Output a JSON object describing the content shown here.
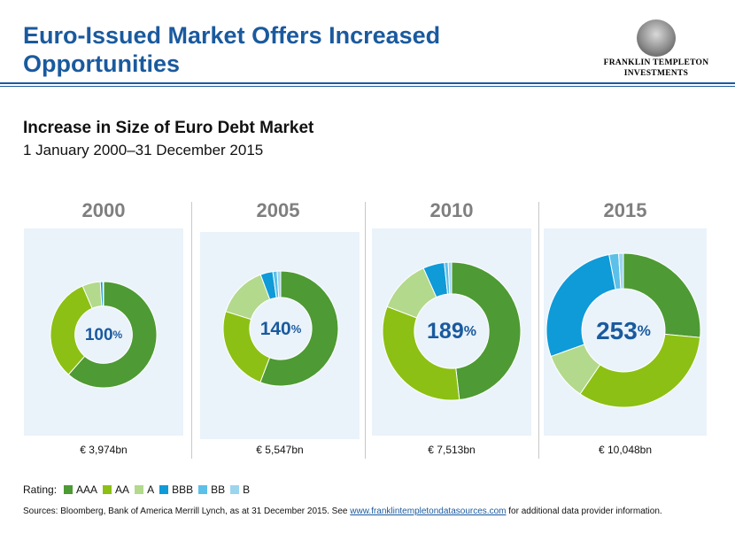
{
  "header": {
    "title": "Euro-Issued Market Offers Increased Opportunities",
    "logo_text_line1": "FRANKLIN TEMPLETON",
    "logo_text_line2": "INVESTMENTS"
  },
  "colors": {
    "brand_blue": "#1a5a9e",
    "AAA": "#4e9a34",
    "AA": "#8cc014",
    "A": "#b3d98c",
    "BBB": "#0f9ad8",
    "BB": "#5cc0e8",
    "B": "#9cd4ee",
    "panel_bg": "#eaf3fa",
    "year_gray": "#7f7f7f"
  },
  "chart_data": {
    "type": "pie",
    "title": "Increase in Size of Euro Debt Market",
    "subtitle": "1 January 2000–31 December 2015",
    "rating_categories": [
      "AAA",
      "AA",
      "A",
      "BBB",
      "BB",
      "B"
    ],
    "panels": [
      {
        "year": "2000",
        "growth_label": "100",
        "total": "€ 3,974bn",
        "values": [
          61.5,
          32.0,
          5.5,
          0.8,
          0.1,
          0.1
        ]
      },
      {
        "year": "2005",
        "growth_label": "140",
        "total": "€ 5,547bn",
        "values": [
          55.8,
          24.0,
          14.5,
          3.5,
          1.2,
          1.0
        ]
      },
      {
        "year": "2010",
        "growth_label": "189",
        "total": "€ 7,513bn",
        "values": [
          48.2,
          32.6,
          12.5,
          5.0,
          0.9,
          0.8
        ]
      },
      {
        "year": "2015",
        "growth_label": "253",
        "total": "€ 10,048bn",
        "values": [
          26.5,
          33.0,
          10.0,
          27.5,
          2.0,
          1.0
        ]
      }
    ]
  },
  "legend": {
    "label": "Rating:",
    "items": [
      "AAA",
      "AA",
      "A",
      "BBB",
      "BB",
      "B"
    ]
  },
  "footer": {
    "source_prefix": "Sources: Bloomberg, Bank of America Merrill Lynch, as at 31 December 2015. See ",
    "source_link": "www.franklintempletondatasources.com",
    "source_suffix": "  for additional data provider information."
  }
}
